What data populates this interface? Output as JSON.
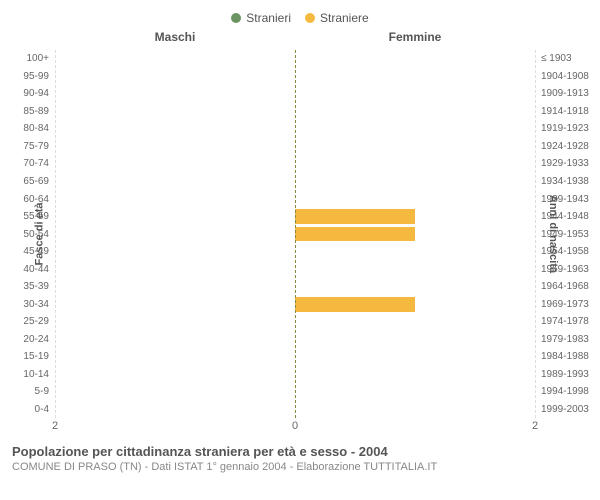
{
  "legend": [
    {
      "label": "Stranieri",
      "color": "#6b9362"
    },
    {
      "label": "Straniere",
      "color": "#f5b940"
    }
  ],
  "chart": {
    "type": "population-pyramid",
    "left_title": "Maschi",
    "right_title": "Femmine",
    "y_axis_left_label": "Fasce di età",
    "y_axis_right_label": "Anni di nascita",
    "x_max": 2,
    "x_ticks": [
      2,
      0,
      2
    ],
    "male_color": "#6b9362",
    "female_color": "#f5b940",
    "background_color": "#ffffff",
    "gridline_color": "#dddddd",
    "center_line_color": "#8a8a3f",
    "bar_relative_height": 0.84,
    "rows": [
      {
        "age": "100+",
        "birth": "≤ 1903",
        "m": 0,
        "f": 0
      },
      {
        "age": "95-99",
        "birth": "1904-1908",
        "m": 0,
        "f": 0
      },
      {
        "age": "90-94",
        "birth": "1909-1913",
        "m": 0,
        "f": 0
      },
      {
        "age": "85-89",
        "birth": "1914-1918",
        "m": 0,
        "f": 0
      },
      {
        "age": "80-84",
        "birth": "1919-1923",
        "m": 0,
        "f": 0
      },
      {
        "age": "75-79",
        "birth": "1924-1928",
        "m": 0,
        "f": 0
      },
      {
        "age": "70-74",
        "birth": "1929-1933",
        "m": 0,
        "f": 0
      },
      {
        "age": "65-69",
        "birth": "1934-1938",
        "m": 0,
        "f": 0
      },
      {
        "age": "60-64",
        "birth": "1939-1943",
        "m": 0,
        "f": 0
      },
      {
        "age": "55-59",
        "birth": "1944-1948",
        "m": 0,
        "f": 1
      },
      {
        "age": "50-54",
        "birth": "1949-1953",
        "m": 0,
        "f": 1
      },
      {
        "age": "45-49",
        "birth": "1954-1958",
        "m": 0,
        "f": 0
      },
      {
        "age": "40-44",
        "birth": "1959-1963",
        "m": 0,
        "f": 0
      },
      {
        "age": "35-39",
        "birth": "1964-1968",
        "m": 0,
        "f": 0
      },
      {
        "age": "30-34",
        "birth": "1969-1973",
        "m": 0,
        "f": 1
      },
      {
        "age": "25-29",
        "birth": "1974-1978",
        "m": 0,
        "f": 0
      },
      {
        "age": "20-24",
        "birth": "1979-1983",
        "m": 0,
        "f": 0
      },
      {
        "age": "15-19",
        "birth": "1984-1988",
        "m": 0,
        "f": 0
      },
      {
        "age": "10-14",
        "birth": "1989-1993",
        "m": 0,
        "f": 0
      },
      {
        "age": "5-9",
        "birth": "1994-1998",
        "m": 0,
        "f": 0
      },
      {
        "age": "0-4",
        "birth": "1999-2003",
        "m": 0,
        "f": 0
      }
    ]
  },
  "footer": {
    "title": "Popolazione per cittadinanza straniera per età e sesso - 2004",
    "subtitle": "COMUNE DI PRASO (TN) - Dati ISTAT 1° gennaio 2004 - Elaborazione TUTTITALIA.IT"
  }
}
